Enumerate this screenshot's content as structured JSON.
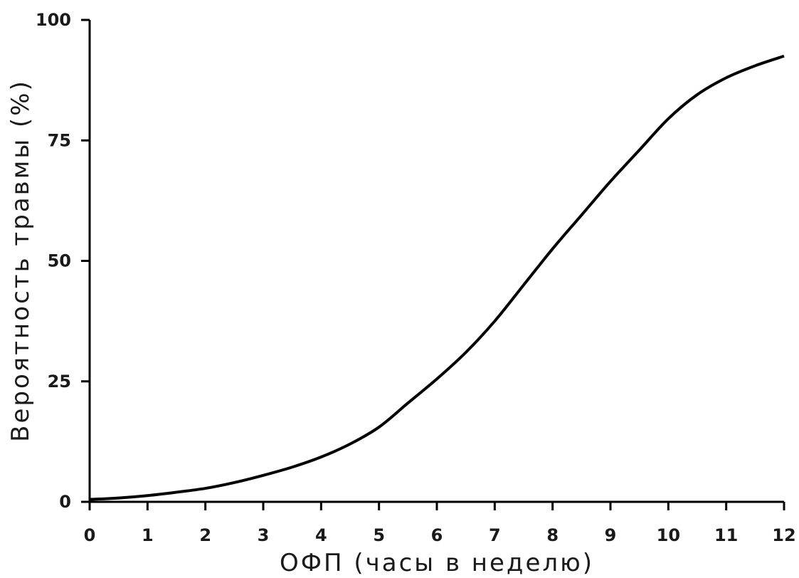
{
  "chart_data": {
    "type": "line",
    "title": "",
    "xlabel": "ОФП (часы в неделю)",
    "ylabel": "Вероятность травмы (%)",
    "xlim": [
      0,
      12
    ],
    "ylim": [
      0,
      100
    ],
    "xticks": [
      "0",
      "1",
      "2",
      "3",
      "4",
      "5",
      "6",
      "7",
      "8",
      "9",
      "10",
      "11",
      "12"
    ],
    "yticks": [
      "0",
      "25",
      "50",
      "75",
      "100"
    ],
    "grid": false,
    "series": [
      {
        "x": [
          0,
          0.5,
          1,
          1.5,
          2,
          2.5,
          3,
          3.5,
          4,
          4.5,
          5,
          5.5,
          6,
          6.5,
          7,
          7.5,
          8,
          8.5,
          9,
          9.5,
          10,
          10.5,
          11,
          11.5,
          12
        ],
        "y": [
          0.5,
          0.8,
          1.3,
          2,
          2.8,
          4,
          5.5,
          7.2,
          9.3,
          12,
          15.5,
          20.5,
          25.5,
          31,
          37.5,
          45,
          52.5,
          59.5,
          66.5,
          73,
          79.5,
          84.5,
          88,
          90.5,
          92.5
        ]
      }
    ]
  }
}
